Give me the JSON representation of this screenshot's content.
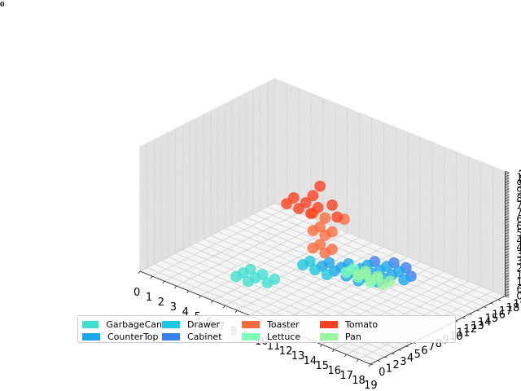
{
  "corner_text": "0",
  "legend": {
    "entries": [
      {
        "label": "GarbageCan",
        "color": "#40e0d0"
      },
      {
        "label": "CounterTop",
        "color": "#1aa7ec"
      },
      {
        "label": "Drawer",
        "color": "#1cc7e0"
      },
      {
        "label": "Cabinet",
        "color": "#3a7ff0"
      },
      {
        "label": "Toaster",
        "color": "#ff6a3d"
      },
      {
        "label": "Lettuce",
        "color": "#7effb8"
      },
      {
        "label": "Tomato",
        "color": "#ff4020"
      },
      {
        "label": "Pan",
        "color": "#98f5a0"
      }
    ]
  },
  "chart_data": {
    "type": "scatter3d",
    "title": "",
    "x_ticks": [
      "0",
      "1",
      "2",
      "3",
      "4",
      "5",
      "6",
      "7",
      "8",
      "9",
      "10",
      "11",
      "12",
      "13",
      "14",
      "15",
      "16",
      "17",
      "18",
      "19"
    ],
    "y_ticks": [
      "0",
      "1",
      "2",
      "3",
      "4",
      "5",
      "6",
      "7",
      "8",
      "9",
      "10",
      "11",
      "12",
      "13",
      "14",
      "15",
      "16",
      "17",
      "18",
      "19"
    ],
    "z_axis": {
      "range": [
        0,
        107
      ],
      "grid": true,
      "note": "tick labels overlap; top labels read 107/108"
    },
    "z_top_tick_labels": [
      "107",
      "108"
    ],
    "grid": true,
    "legend_placement": "lower center",
    "series": [
      {
        "name": "GarbageCan",
        "points": [
          [
            5,
            6,
            1
          ],
          [
            6,
            6,
            1
          ],
          [
            7,
            6,
            1
          ],
          [
            5,
            7,
            1
          ],
          [
            6,
            7,
            1
          ],
          [
            7,
            7,
            1
          ],
          [
            6,
            5,
            1
          ],
          [
            5,
            5,
            1
          ]
        ]
      },
      {
        "name": "CounterTop",
        "points": [
          [
            8,
            12,
            1
          ],
          [
            9,
            12,
            1
          ],
          [
            10,
            12,
            1
          ],
          [
            11,
            12,
            1
          ],
          [
            8,
            13,
            1
          ],
          [
            9,
            13,
            1
          ],
          [
            10,
            13,
            1
          ],
          [
            11,
            13,
            1
          ],
          [
            12,
            13,
            1
          ],
          [
            9,
            14,
            1
          ],
          [
            10,
            14,
            1
          ],
          [
            11,
            14,
            1
          ],
          [
            12,
            14,
            1
          ],
          [
            10,
            15,
            1
          ],
          [
            11,
            15,
            1
          ],
          [
            12,
            15,
            1
          ],
          [
            13,
            15,
            1
          ],
          [
            11,
            16,
            1
          ],
          [
            12,
            16,
            1
          ]
        ]
      },
      {
        "name": "Drawer",
        "points": [
          [
            7,
            11,
            1
          ],
          [
            8,
            11,
            1
          ],
          [
            9,
            11,
            1
          ],
          [
            7,
            12,
            1
          ]
        ]
      },
      {
        "name": "Cabinet",
        "points": [
          [
            10,
            16,
            1
          ],
          [
            11,
            17,
            1
          ],
          [
            12,
            17,
            1
          ],
          [
            13,
            16,
            1
          ]
        ]
      },
      {
        "name": "Toaster",
        "points": [
          [
            9,
            9,
            30
          ],
          [
            10,
            9,
            30
          ],
          [
            9,
            10,
            30
          ],
          [
            10,
            10,
            30
          ],
          [
            9,
            9,
            45
          ],
          [
            10,
            9,
            45
          ],
          [
            9,
            10,
            45
          ],
          [
            10,
            10,
            45
          ],
          [
            9,
            9,
            60
          ],
          [
            10,
            9,
            60
          ],
          [
            11,
            10,
            60
          ]
        ]
      },
      {
        "name": "Lettuce",
        "points": [
          [
            10,
            12,
            4
          ],
          [
            11,
            12,
            4
          ],
          [
            12,
            12,
            4
          ],
          [
            10,
            13,
            4
          ],
          [
            11,
            13,
            4
          ],
          [
            12,
            13,
            4
          ]
        ]
      },
      {
        "name": "Tomato",
        "points": [
          [
            8,
            7,
            70
          ],
          [
            9,
            7,
            70
          ],
          [
            10,
            7,
            70
          ],
          [
            8,
            8,
            72
          ],
          [
            9,
            8,
            72
          ],
          [
            10,
            8,
            72
          ],
          [
            9,
            9,
            75
          ],
          [
            11,
            9,
            65
          ],
          [
            10,
            10,
            68
          ],
          [
            9,
            10,
            80
          ]
        ]
      },
      {
        "name": "Pan",
        "points": [
          [
            11,
            12,
            6
          ],
          [
            12,
            12,
            6
          ],
          [
            13,
            12,
            6
          ],
          [
            11,
            13,
            6
          ],
          [
            12,
            13,
            6
          ],
          [
            13,
            13,
            6
          ]
        ]
      }
    ]
  }
}
